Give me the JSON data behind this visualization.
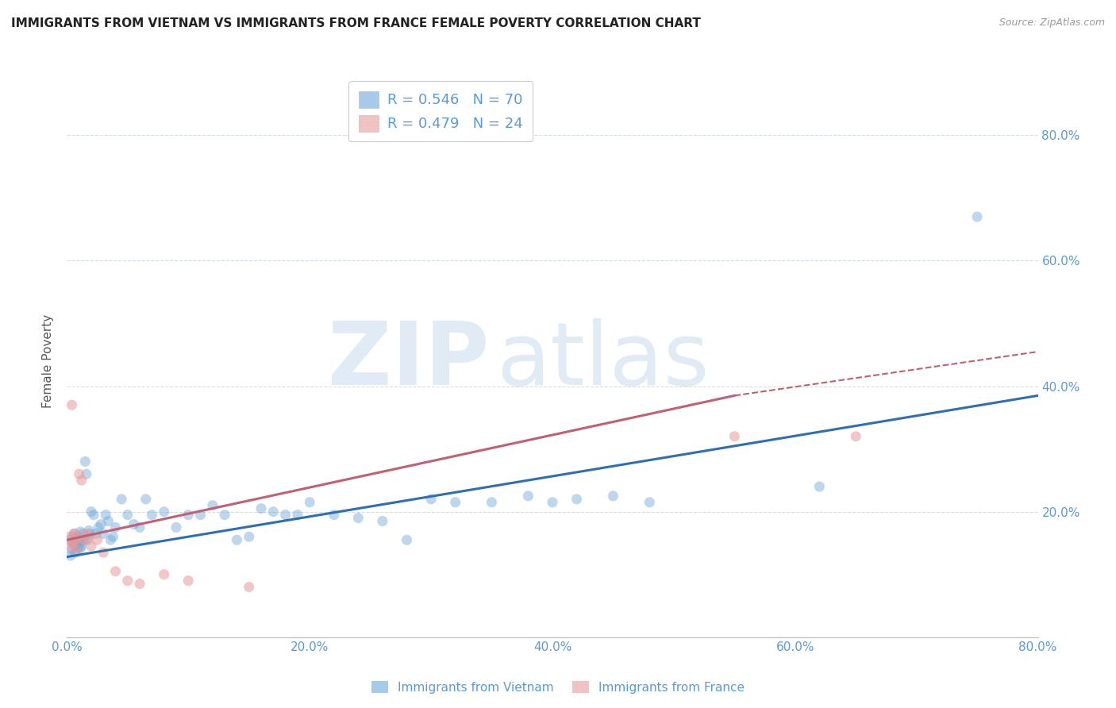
{
  "title": "IMMIGRANTS FROM VIETNAM VS IMMIGRANTS FROM FRANCE FEMALE POVERTY CORRELATION CHART",
  "source": "Source: ZipAtlas.com",
  "ylabel": "Female Poverty",
  "xlim": [
    0.0,
    0.8
  ],
  "ylim": [
    0.0,
    0.88
  ],
  "ytick_labels": [
    "",
    "20.0%",
    "40.0%",
    "60.0%",
    "80.0%"
  ],
  "ytick_vals": [
    0.0,
    0.2,
    0.4,
    0.6,
    0.8
  ],
  "xtick_labels": [
    "0.0%",
    "20.0%",
    "40.0%",
    "60.0%",
    "80.0%"
  ],
  "xtick_vals": [
    0.0,
    0.2,
    0.4,
    0.6,
    0.8
  ],
  "vietnam_color": "#6fa8dc",
  "france_color": "#ea9999",
  "vietnam_R": 0.546,
  "vietnam_N": 70,
  "france_R": 0.479,
  "france_N": 24,
  "watermark_zip": "ZIP",
  "watermark_atlas": "atlas",
  "background_color": "#ffffff",
  "grid_color": "#d0dce8",
  "title_color": "#222222",
  "axis_label_color": "#555555",
  "tick_label_color": "#5b9bd5",
  "vietnam_line_color": "#2e6faf",
  "france_line_color": "#c06070",
  "vietnam_scatter_x": [
    0.002,
    0.003,
    0.004,
    0.005,
    0.005,
    0.006,
    0.006,
    0.007,
    0.007,
    0.008,
    0.008,
    0.009,
    0.009,
    0.01,
    0.01,
    0.011,
    0.011,
    0.012,
    0.012,
    0.013,
    0.014,
    0.015,
    0.016,
    0.017,
    0.018,
    0.019,
    0.02,
    0.022,
    0.024,
    0.026,
    0.028,
    0.03,
    0.032,
    0.034,
    0.036,
    0.038,
    0.04,
    0.045,
    0.05,
    0.055,
    0.06,
    0.065,
    0.07,
    0.08,
    0.09,
    0.1,
    0.11,
    0.12,
    0.13,
    0.14,
    0.15,
    0.16,
    0.17,
    0.18,
    0.19,
    0.2,
    0.22,
    0.24,
    0.26,
    0.28,
    0.3,
    0.32,
    0.35,
    0.38,
    0.4,
    0.42,
    0.45,
    0.48,
    0.62,
    0.75
  ],
  "vietnam_scatter_y": [
    0.155,
    0.13,
    0.14,
    0.16,
    0.15,
    0.145,
    0.165,
    0.135,
    0.155,
    0.148,
    0.158,
    0.152,
    0.142,
    0.16,
    0.148,
    0.168,
    0.142,
    0.158,
    0.145,
    0.165,
    0.155,
    0.28,
    0.26,
    0.155,
    0.17,
    0.165,
    0.2,
    0.195,
    0.165,
    0.175,
    0.18,
    0.165,
    0.195,
    0.185,
    0.155,
    0.16,
    0.175,
    0.22,
    0.195,
    0.18,
    0.175,
    0.22,
    0.195,
    0.2,
    0.175,
    0.195,
    0.195,
    0.21,
    0.195,
    0.155,
    0.16,
    0.205,
    0.2,
    0.195,
    0.195,
    0.215,
    0.195,
    0.19,
    0.185,
    0.155,
    0.22,
    0.215,
    0.215,
    0.225,
    0.215,
    0.22,
    0.225,
    0.215,
    0.24,
    0.67
  ],
  "france_scatter_x": [
    0.002,
    0.003,
    0.004,
    0.005,
    0.006,
    0.007,
    0.008,
    0.009,
    0.01,
    0.012,
    0.014,
    0.016,
    0.018,
    0.02,
    0.025,
    0.03,
    0.04,
    0.05,
    0.06,
    0.08,
    0.1,
    0.15,
    0.55,
    0.65
  ],
  "france_scatter_y": [
    0.16,
    0.145,
    0.37,
    0.15,
    0.165,
    0.155,
    0.14,
    0.16,
    0.26,
    0.25,
    0.155,
    0.165,
    0.16,
    0.145,
    0.155,
    0.135,
    0.105,
    0.09,
    0.085,
    0.1,
    0.09,
    0.08,
    0.32,
    0.32
  ],
  "vn_line_x0": 0.0,
  "vn_line_y0": 0.128,
  "vn_line_x1": 0.8,
  "vn_line_y1": 0.385,
  "fr_line_x0": 0.0,
  "fr_line_y0": 0.155,
  "fr_line_xsolid": 0.55,
  "fr_line_ysolid": 0.385,
  "fr_line_x1": 0.8,
  "fr_line_y1": 0.455
}
